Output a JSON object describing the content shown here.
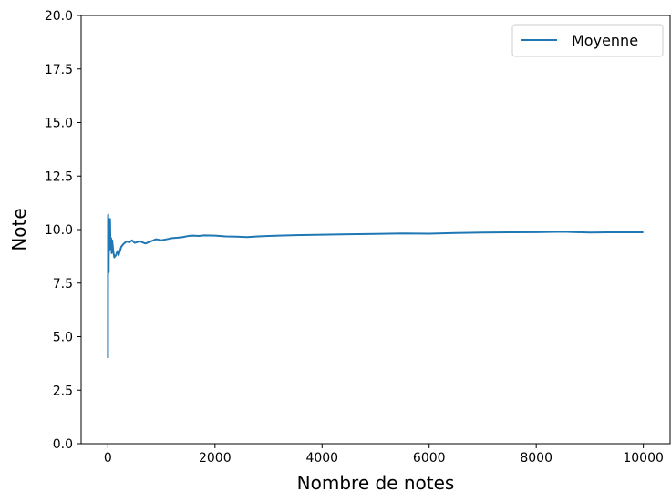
{
  "chart_data": {
    "type": "line",
    "xlabel": "Nombre de notes",
    "ylabel": "Note",
    "xlim": [
      -500,
      10500
    ],
    "ylim": [
      0,
      20
    ],
    "x_ticks": [
      0,
      2000,
      4000,
      6000,
      8000,
      10000
    ],
    "x_tick_labels": [
      "0",
      "2000",
      "4000",
      "6000",
      "8000",
      "10000"
    ],
    "y_ticks": [
      0,
      2.5,
      5,
      7.5,
      10,
      12.5,
      15,
      17.5,
      20
    ],
    "y_tick_labels": [
      "0.0",
      "2.5",
      "5.0",
      "7.5",
      "10.0",
      "12.5",
      "15.0",
      "17.5",
      "20.0"
    ],
    "grid": false,
    "legend_position": "top-right",
    "series": [
      {
        "name": "Moyenne",
        "color": "#1f77b4",
        "x": [
          1,
          2,
          3,
          5,
          8,
          10,
          15,
          20,
          25,
          30,
          40,
          50,
          60,
          70,
          80,
          100,
          120,
          150,
          180,
          200,
          250,
          300,
          350,
          400,
          450,
          500,
          600,
          700,
          800,
          900,
          1000,
          1100,
          1200,
          1300,
          1400,
          1500,
          1600,
          1700,
          1800,
          2000,
          2200,
          2400,
          2600,
          2800,
          3000,
          3200,
          3500,
          4000,
          4500,
          5000,
          5500,
          6000,
          6500,
          7000,
          7500,
          8000,
          8500,
          9000,
          9500,
          10000
        ],
        "values": [
          4.0,
          7.8,
          10.6,
          10.7,
          9.4,
          10.2,
          8.0,
          10.3,
          9.0,
          9.8,
          10.5,
          9.1,
          9.6,
          8.9,
          9.5,
          9.0,
          8.7,
          8.8,
          9.0,
          8.8,
          9.2,
          9.35,
          9.45,
          9.4,
          9.5,
          9.38,
          9.45,
          9.35,
          9.45,
          9.55,
          9.5,
          9.55,
          9.6,
          9.62,
          9.65,
          9.7,
          9.72,
          9.7,
          9.73,
          9.72,
          9.68,
          9.67,
          9.65,
          9.68,
          9.7,
          9.72,
          9.74,
          9.76,
          9.78,
          9.8,
          9.82,
          9.81,
          9.84,
          9.86,
          9.87,
          9.88,
          9.9,
          9.86,
          9.88,
          9.87
        ]
      }
    ]
  }
}
